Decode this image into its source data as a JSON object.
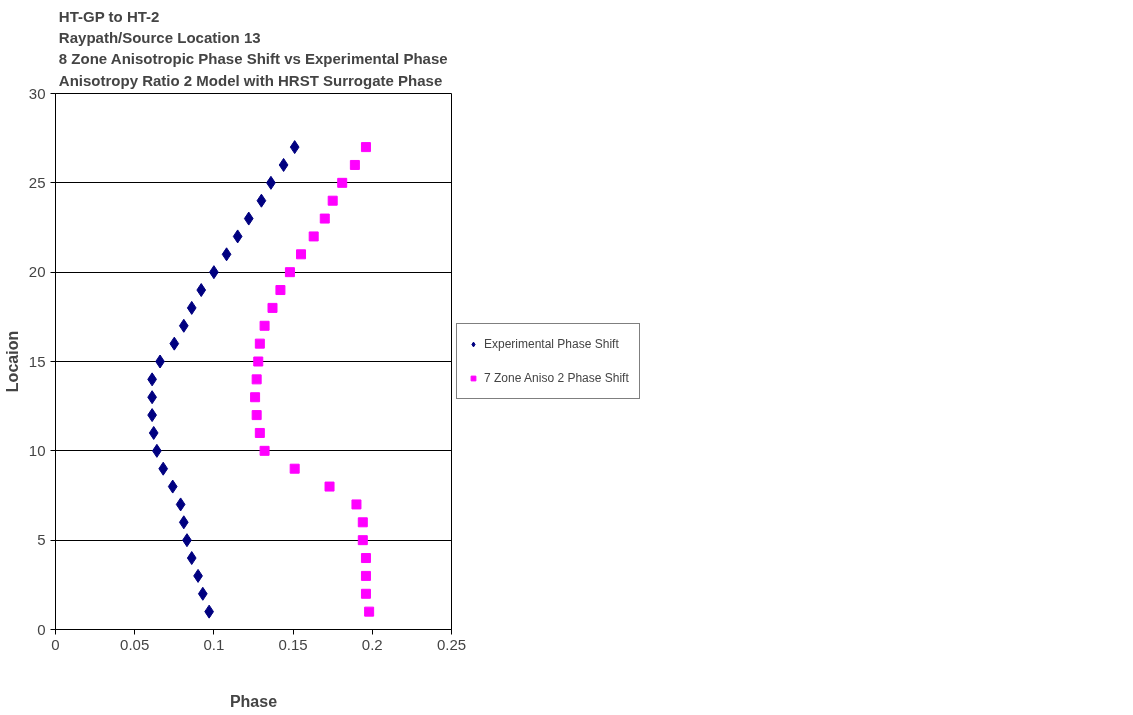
{
  "chart_data": {
    "type": "scatter",
    "title": "HT-GP to HT-2\nRaypath/Source Location 13\n8 Zone Anisotropic Phase Shift vs Experimental Phase\nAnisotropy Ratio 2 Model with HRST Surrogate Phase",
    "xlabel": "Phase",
    "ylabel": "Locaion",
    "xlim": [
      0,
      0.25
    ],
    "xticks": [
      0,
      0.05,
      0.1,
      0.15,
      0.2,
      0.25
    ],
    "ylim": [
      0,
      30
    ],
    "yticks": [
      0,
      5,
      10,
      15,
      20,
      25,
      30
    ],
    "grid": "y",
    "legend": "right",
    "series": [
      {
        "name": "Experimental Phase Shift",
        "color": "#000080",
        "marker": "diamond",
        "x": [
          0.097,
          0.093,
          0.09,
          0.086,
          0.083,
          0.081,
          0.079,
          0.074,
          0.068,
          0.064,
          0.062,
          0.061,
          0.061,
          0.061,
          0.066,
          0.075,
          0.081,
          0.086,
          0.092,
          0.1,
          0.108,
          0.115,
          0.122,
          0.13,
          0.136,
          0.144,
          0.151
        ],
        "values": [
          1,
          2,
          3,
          4,
          5,
          6,
          7,
          8,
          9,
          10,
          11,
          12,
          13,
          14,
          15,
          16,
          17,
          18,
          19,
          20,
          21,
          22,
          23,
          24,
          25,
          26,
          27
        ]
      },
      {
        "name": "7 Zone Aniso 2 Phase Shift",
        "color": "#ff00ff",
        "marker": "square",
        "x": [
          0.198,
          0.196,
          0.196,
          0.196,
          0.194,
          0.194,
          0.19,
          0.173,
          0.151,
          0.132,
          0.129,
          0.127,
          0.126,
          0.127,
          0.128,
          0.129,
          0.132,
          0.137,
          0.142,
          0.148,
          0.155,
          0.163,
          0.17,
          0.175,
          0.181,
          0.189,
          0.196
        ],
        "values": [
          1,
          2,
          3,
          4,
          5,
          6,
          7,
          8,
          9,
          10,
          11,
          12,
          13,
          14,
          15,
          16,
          17,
          18,
          19,
          20,
          21,
          22,
          23,
          24,
          25,
          26,
          27
        ]
      }
    ]
  }
}
